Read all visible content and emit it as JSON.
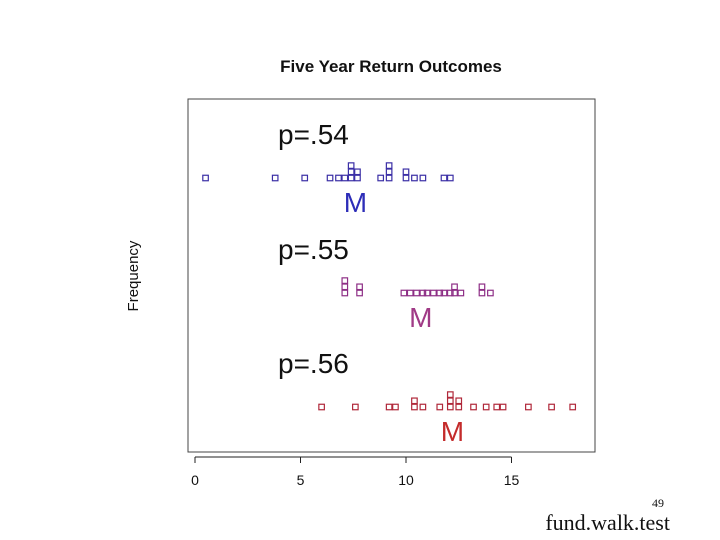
{
  "slide": {
    "page_number": "49",
    "footer": "fund.walk.test"
  },
  "chart_data": {
    "type": "scatter",
    "title": "Five Year Return Outcomes",
    "xlabel": "",
    "ylabel": "Frequency",
    "xlim": [
      0,
      18.5
    ],
    "xticks": [
      0,
      5,
      10,
      15
    ],
    "grid": false,
    "legend": "none",
    "panels": [
      {
        "label": "p=.54",
        "marker_label": "M",
        "marker_value": 7.6,
        "color": "#3b2fa6",
        "marker_color": "#2d2db8",
        "points": [
          {
            "x": 0.5,
            "count": 1
          },
          {
            "x": 3.8,
            "count": 1
          },
          {
            "x": 5.2,
            "count": 1
          },
          {
            "x": 6.4,
            "count": 1
          },
          {
            "x": 6.8,
            "count": 1
          },
          {
            "x": 7.1,
            "count": 1
          },
          {
            "x": 7.4,
            "count": 3
          },
          {
            "x": 7.7,
            "count": 2
          },
          {
            "x": 8.8,
            "count": 1
          },
          {
            "x": 9.2,
            "count": 3
          },
          {
            "x": 10.0,
            "count": 2
          },
          {
            "x": 10.4,
            "count": 1
          },
          {
            "x": 10.8,
            "count": 1
          },
          {
            "x": 11.8,
            "count": 1
          },
          {
            "x": 12.1,
            "count": 1
          }
        ]
      },
      {
        "label": "p=.55",
        "marker_label": "M",
        "marker_value": 10.7,
        "color": "#8e2f86",
        "marker_color": "#a03a86",
        "points": [
          {
            "x": 7.1,
            "count": 3
          },
          {
            "x": 7.8,
            "count": 2
          },
          {
            "x": 9.9,
            "count": 1
          },
          {
            "x": 10.2,
            "count": 1
          },
          {
            "x": 10.5,
            "count": 1
          },
          {
            "x": 10.8,
            "count": 1
          },
          {
            "x": 11.0,
            "count": 1
          },
          {
            "x": 11.3,
            "count": 1
          },
          {
            "x": 11.6,
            "count": 1
          },
          {
            "x": 11.8,
            "count": 1
          },
          {
            "x": 12.1,
            "count": 1
          },
          {
            "x": 12.3,
            "count": 2
          },
          {
            "x": 12.6,
            "count": 1
          },
          {
            "x": 13.6,
            "count": 2
          },
          {
            "x": 14.0,
            "count": 1
          }
        ]
      },
      {
        "label": "p=.56",
        "marker_label": "M",
        "marker_value": 12.2,
        "color": "#b0283a",
        "marker_color": "#c42b2b",
        "points": [
          {
            "x": 6.0,
            "count": 1
          },
          {
            "x": 7.6,
            "count": 1
          },
          {
            "x": 9.2,
            "count": 1
          },
          {
            "x": 9.5,
            "count": 1
          },
          {
            "x": 10.4,
            "count": 2
          },
          {
            "x": 10.8,
            "count": 1
          },
          {
            "x": 11.6,
            "count": 1
          },
          {
            "x": 12.1,
            "count": 3
          },
          {
            "x": 12.5,
            "count": 2
          },
          {
            "x": 13.2,
            "count": 1
          },
          {
            "x": 13.8,
            "count": 1
          },
          {
            "x": 14.3,
            "count": 1
          },
          {
            "x": 14.6,
            "count": 1
          },
          {
            "x": 15.8,
            "count": 1
          },
          {
            "x": 16.9,
            "count": 1
          },
          {
            "x": 17.9,
            "count": 1
          }
        ]
      }
    ]
  }
}
